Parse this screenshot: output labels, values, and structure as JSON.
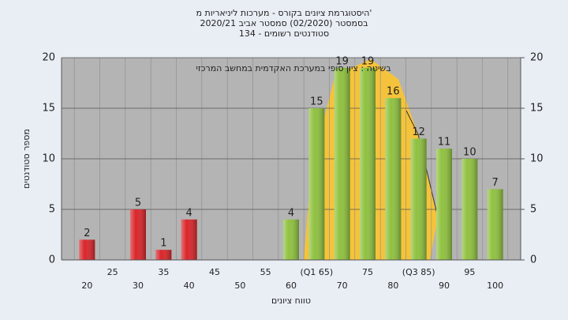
{
  "chart_data": {
    "type": "bar",
    "title": [
      "היסטוגרמת ציונים בקורס - מערכות ליניאריות מ'",
      "בסמסטר (02/2020) סמסטר אביב 2020/21",
      "סטודנטים רשומים - 134"
    ],
    "annotation": "בשיטה : ציון סופי במערכת האקדמית במחשב המרכזי",
    "x_label": "טווח ציונים",
    "y_label": "מספר סטודנטים",
    "categories": [
      "20",
      "25",
      "30",
      "35",
      "40",
      "45",
      "50",
      "55",
      "60",
      "(Q1 65)",
      "70",
      "75",
      "80",
      "(Q3 85)",
      "90",
      "95",
      "100"
    ],
    "values": [
      2,
      0,
      5,
      1,
      4,
      0,
      0,
      0,
      4,
      15,
      19,
      19,
      16,
      12,
      11,
      10,
      7
    ],
    "colors": [
      "#d9262b",
      "#d9262b",
      "#d9262b",
      "#d9262b",
      "#d9262b",
      "#d9262b",
      "#d9262b",
      "#d9262b",
      "#8fc13f",
      "#8fc13f",
      "#8fc13f",
      "#8fc13f",
      "#8fc13f",
      "#8fc13f",
      "#8fc13f",
      "#8fc13f",
      "#8fc13f"
    ],
    "ylim": [
      0,
      20
    ],
    "yticks": [
      0,
      5,
      10,
      15,
      20
    ],
    "y2lim": [
      0,
      20
    ],
    "y2ticks": [
      0,
      5,
      10,
      15,
      20
    ],
    "grid": true
  }
}
